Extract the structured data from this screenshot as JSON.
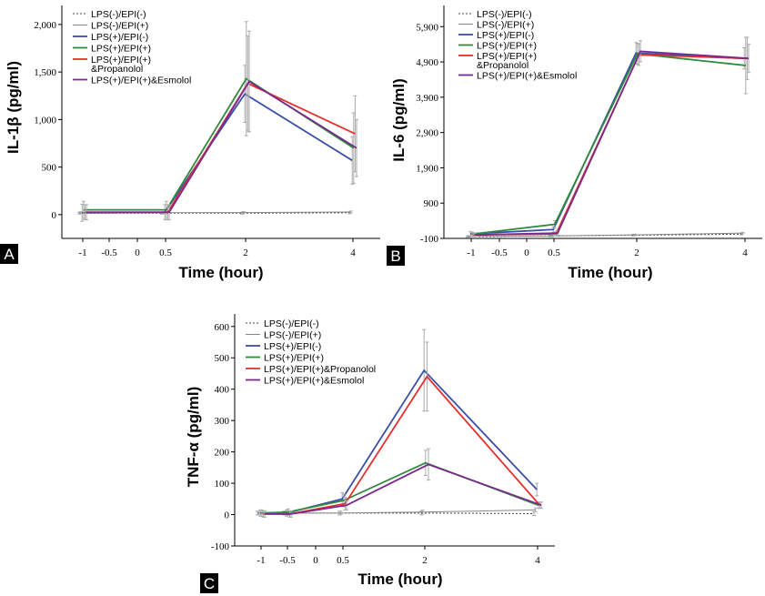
{
  "chart_data": [
    {
      "panel": "A",
      "type": "line",
      "xlabel": "Time (hour)",
      "ylabel": "IL-1β (pg/ml)",
      "x_ticks": [
        "-1",
        "-0.5",
        "0",
        "0.5",
        "2",
        "4"
      ],
      "y_ticks": [
        "0",
        "500",
        "1,000",
        "1,500",
        "2,000"
      ],
      "ylim": [
        -250,
        2200
      ],
      "legend": [
        "LPS(-)/EPI(-)",
        "LPS(-)/EPI(+)",
        "LPS(+)/EPI(-)",
        "LPS(+)/EPI(+)",
        "LPS(+)/EPI(+)\n&Propanolol",
        "LPS(+)/EPI(+)&Esmolol"
      ],
      "x": [
        "-1",
        "0.5",
        "2",
        "4"
      ],
      "series": [
        {
          "name": "LPS(-)/EPI(-)",
          "values": [
            15,
            15,
            15,
            20
          ],
          "err": [
            10,
            10,
            10,
            10
          ]
        },
        {
          "name": "LPS(-)/EPI(+)",
          "values": [
            20,
            20,
            22,
            28
          ],
          "err": [
            10,
            10,
            10,
            10
          ]
        },
        {
          "name": "LPS(+)/EPI(-)",
          "values": [
            20,
            25,
            1270,
            570
          ],
          "err": [
            90,
            80,
            300,
            250
          ]
        },
        {
          "name": "LPS(+)/EPI(+)",
          "values": [
            50,
            50,
            1430,
            700
          ],
          "err": [
            90,
            90,
            600,
            370
          ]
        },
        {
          "name": "LPS(+)/EPI(+)\n&Propanolol",
          "values": [
            25,
            25,
            1380,
            850
          ],
          "err": [
            80,
            80,
            500,
            400
          ]
        },
        {
          "name": "LPS(+)/EPI(+)&Esmolol",
          "values": [
            25,
            25,
            1400,
            700
          ],
          "err": [
            80,
            80,
            530,
            300
          ]
        }
      ]
    },
    {
      "panel": "B",
      "type": "line",
      "xlabel": "Time (hour)",
      "ylabel": "IL-6 (pg/ml)",
      "x_ticks": [
        "-1",
        "-0.5",
        "0",
        "0.5",
        "2",
        "4"
      ],
      "y_ticks": [
        "-100",
        "900",
        "1,900",
        "2,900",
        "3,900",
        "4,900",
        "5,900"
      ],
      "ylim": [
        -100,
        6500
      ],
      "legend": [
        "LPS(-)/EPI(-)",
        "LPS(-)/EPI(+)",
        "LPS(+)/EPI(-)",
        "LPS(+)/EPI(+)",
        "LPS(+)/EPI(+)\n&Propanolol",
        "LPS(+)/EPI(+)&Esmolol"
      ],
      "x": [
        "-1",
        "0.5",
        "2",
        "4"
      ],
      "series": [
        {
          "name": "LPS(-)/EPI(-)",
          "values": [
            -50,
            -30,
            -10,
            20
          ],
          "err": [
            20,
            20,
            20,
            20
          ]
        },
        {
          "name": "LPS(-)/EPI(+)",
          "values": [
            -40,
            -30,
            0,
            50
          ],
          "err": [
            20,
            20,
            20,
            20
          ]
        },
        {
          "name": "LPS(+)/EPI(-)",
          "values": [
            30,
            150,
            5150,
            5000
          ],
          "err": [
            60,
            80,
            300,
            300
          ]
        },
        {
          "name": "LPS(+)/EPI(+)",
          "values": [
            20,
            300,
            5130,
            4800
          ],
          "err": [
            60,
            100,
            300,
            800
          ]
        },
        {
          "name": "LPS(+)/EPI(+)\n&Propanolol",
          "values": [
            0,
            30,
            5100,
            5000
          ],
          "err": [
            50,
            60,
            300,
            600
          ]
        },
        {
          "name": "LPS(+)/EPI(+)&Esmolol",
          "values": [
            0,
            50,
            5200,
            5000
          ],
          "err": [
            50,
            60,
            300,
            400
          ]
        }
      ]
    },
    {
      "panel": "C",
      "type": "line",
      "xlabel": "Time (hour)",
      "ylabel": "TNF-α (pg/ml)",
      "x_ticks": [
        "-1",
        "-0.5",
        "0",
        "0.5",
        "2",
        "4"
      ],
      "y_ticks": [
        "-100",
        "0",
        "100",
        "200",
        "300",
        "400",
        "500",
        "600"
      ],
      "ylim": [
        -100,
        640
      ],
      "legend": [
        "LPS(-)/EPI(-)",
        "LPS(-)/EPI(+)",
        "LPS(+)/EPI(-)",
        "LPS(+)/EPI(+)",
        "LPS(+)/EPI(+)&Propanolol",
        "LPS(+)/EPI(+)&Esmolol"
      ],
      "x": [
        "-1",
        "-0.5",
        "0.5",
        "2",
        "4"
      ],
      "series": [
        {
          "name": "LPS(-)/EPI(-)",
          "values": [
            5,
            5,
            5,
            5,
            3
          ],
          "err": [
            6,
            6,
            6,
            6,
            6
          ]
        },
        {
          "name": "LPS(-)/EPI(+)",
          "values": [
            5,
            5,
            5,
            8,
            15
          ],
          "err": [
            6,
            6,
            6,
            6,
            6
          ]
        },
        {
          "name": "LPS(+)/EPI(-)",
          "values": [
            5,
            5,
            50,
            460,
            80
          ],
          "err": [
            10,
            10,
            20,
            130,
            20
          ]
        },
        {
          "name": "LPS(+)/EPI(+)",
          "values": [
            5,
            8,
            45,
            165,
            30
          ],
          "err": [
            10,
            10,
            20,
            40,
            10
          ]
        },
        {
          "name": "LPS(+)/EPI(+)&Propanolol",
          "values": [
            2,
            2,
            35,
            440,
            30
          ],
          "err": [
            10,
            10,
            20,
            110,
            10
          ]
        },
        {
          "name": "LPS(+)/EPI(+)&Esmolol",
          "values": [
            2,
            2,
            30,
            160,
            30
          ],
          "err": [
            10,
            10,
            15,
            50,
            10
          ]
        }
      ]
    }
  ],
  "panel_labels": [
    "A",
    "B",
    "C"
  ],
  "colors": {
    "LPS(-)/EPI(-)": "#444444",
    "LPS(-)/EPI(+)": "#888888",
    "LPS(+)/EPI(-)": "#3a4fa8",
    "LPS(+)/EPI(+)": "#2e8b3e",
    "LPS(+)/EPI(+)&Propanolol": "#e53030",
    "LPS(+)/EPI(+)&Esmolol": "#7a2a8c",
    "errorbar": "#aaaaaa"
  }
}
